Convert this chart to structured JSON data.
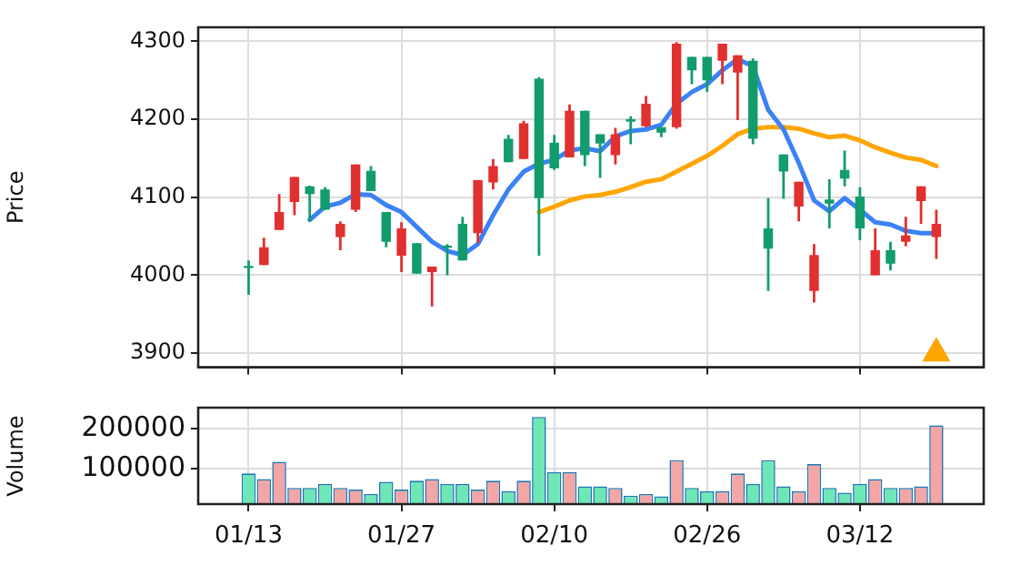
{
  "chart_data": [
    {
      "type": "candlestick",
      "ylabel": "Price",
      "categories": [
        null,
        null,
        null,
        null,
        null,
        null,
        null,
        null,
        null,
        null,
        null,
        null,
        null,
        null,
        null,
        null,
        null,
        null,
        null,
        null,
        null,
        null,
        null,
        null,
        null,
        null,
        null,
        null,
        null,
        null,
        null,
        null,
        null,
        null,
        null,
        null,
        null,
        null,
        null,
        null,
        null,
        null,
        null,
        null,
        null,
        null
      ],
      "ohlc": [
        [
          4010,
          4019,
          3975,
          4012
        ],
        [
          4036,
          4048,
          4013,
          4013
        ],
        [
          4081,
          4104,
          4058,
          4058
        ],
        [
          4126,
          4126,
          4077,
          4094
        ],
        [
          4104,
          4115,
          4069,
          4114
        ],
        [
          4084,
          4113,
          4084,
          4110
        ],
        [
          4066,
          4069,
          4032,
          4049
        ],
        [
          4142,
          4142,
          4081,
          4084
        ],
        [
          4108,
          4140,
          4108,
          4134
        ],
        [
          4043,
          4081,
          4036,
          4081
        ],
        [
          4060,
          4068,
          4004,
          4025
        ],
        [
          4002,
          4041,
          4002,
          4041
        ],
        [
          4011,
          4011,
          3960,
          4004
        ],
        [
          4036,
          4040,
          4000,
          4038
        ],
        [
          4019,
          4075,
          4019,
          4066
        ],
        [
          4122,
          4122,
          4041,
          4054
        ],
        [
          4140,
          4149,
          4110,
          4119
        ],
        [
          4145,
          4180,
          4145,
          4175
        ],
        [
          4195,
          4198,
          4149,
          4149
        ],
        [
          4099,
          4254,
          4025,
          4252
        ],
        [
          4137,
          4180,
          4135,
          4170
        ],
        [
          4211,
          4219,
          4151,
          4151
        ],
        [
          4154,
          4211,
          4140,
          4211
        ],
        [
          4169,
          4181,
          4125,
          4181
        ],
        [
          4181,
          4189,
          4142,
          4154
        ],
        [
          4197,
          4204,
          4168,
          4200
        ],
        [
          4220,
          4230,
          4190,
          4191
        ],
        [
          4183,
          4190,
          4177,
          4190
        ],
        [
          4297,
          4299,
          4188,
          4190
        ],
        [
          4263,
          4280,
          4245,
          4280
        ],
        [
          4250,
          4280,
          4235,
          4280
        ],
        [
          4297,
          4297,
          4245,
          4275
        ],
        [
          4282,
          4282,
          4199,
          4260
        ],
        [
          4175,
          4278,
          4168,
          4275
        ],
        [
          4034,
          4099,
          3980,
          4060
        ],
        [
          4133,
          4155,
          4098,
          4155
        ],
        [
          4120,
          4120,
          4069,
          4088
        ],
        [
          4026,
          4040,
          3965,
          3980
        ],
        [
          4092,
          4123,
          4060,
          4097
        ],
        [
          4124,
          4160,
          4114,
          4135
        ],
        [
          4060,
          4113,
          4045,
          4101
        ],
        [
          4032,
          4060,
          4000,
          4000
        ],
        [
          4015,
          4043,
          4006,
          4032
        ],
        [
          4051,
          4075,
          4037,
          4043
        ],
        [
          4114,
          4114,
          4066,
          4095
        ],
        [
          4066,
          4084,
          4021,
          4049
        ]
      ],
      "colors": [
        "#129c6c",
        "#e0302f",
        "#e0302f",
        "#e0302f",
        "#129c6c",
        "#129c6c",
        "#e0302f",
        "#e0302f",
        "#129c6c",
        "#129c6c",
        "#e0302f",
        "#129c6c",
        "#e0302f",
        "#129c6c",
        "#129c6c",
        "#e0302f",
        "#e0302f",
        "#129c6c",
        "#e0302f",
        "#129c6c",
        "#129c6c",
        "#e0302f",
        "#129c6c",
        "#129c6c",
        "#e0302f",
        "#129c6c",
        "#e0302f",
        "#129c6c",
        "#e0302f",
        "#129c6c",
        "#129c6c",
        "#e0302f",
        "#e0302f",
        "#129c6c",
        "#129c6c",
        "#129c6c",
        "#e0302f",
        "#e0302f",
        "#129c6c",
        "#129c6c",
        "#129c6c",
        "#e0302f",
        "#129c6c",
        "#e0302f",
        "#e0302f",
        "#e0302f"
      ],
      "series": [
        {
          "type": "line",
          "color": "#3b82f6",
          "values": [
            null,
            null,
            null,
            null,
            4071,
            4088,
            4093,
            4104,
            4103,
            4090,
            4081,
            4062,
            4043,
            4031,
            4026,
            4040,
            4077,
            4110,
            4133,
            4143,
            4148,
            4160,
            4163,
            4159,
            4178,
            4185,
            4187,
            4193,
            4220,
            4235,
            4245,
            4263,
            4277,
            4268,
            4212,
            4187,
            4144,
            4096,
            4082,
            4099,
            4084,
            4068,
            4065,
            4057,
            4054,
            4054
          ]
        },
        {
          "type": "line",
          "color": "#ffa500",
          "values": [
            null,
            null,
            null,
            null,
            null,
            null,
            null,
            null,
            null,
            null,
            null,
            null,
            null,
            null,
            null,
            null,
            null,
            null,
            null,
            4081,
            4088,
            4096,
            4101,
            4103,
            4107,
            4113,
            4120,
            4123,
            4133,
            4143,
            4153,
            4166,
            4181,
            4188,
            4190,
            4190,
            4188,
            4182,
            4177,
            4179,
            4173,
            4164,
            4157,
            4151,
            4148,
            4140
          ]
        },
        {
          "type": "scatter",
          "color": "#ffa500",
          "marker": "triangle",
          "values": [
            null,
            null,
            null,
            null,
            null,
            null,
            null,
            null,
            null,
            null,
            null,
            null,
            null,
            null,
            null,
            null,
            null,
            null,
            null,
            null,
            null,
            null,
            null,
            null,
            null,
            null,
            null,
            null,
            null,
            null,
            null,
            null,
            null,
            null,
            null,
            null,
            null,
            null,
            null,
            null,
            null,
            null,
            null,
            null,
            null,
            3900
          ]
        }
      ],
      "ylim": [
        3882,
        4318
      ],
      "yticks": [
        3900,
        4000,
        4100,
        4200,
        4300
      ],
      "grid": true,
      "tick_labels": "y"
    },
    {
      "type": "bar",
      "ylabel": "Volume",
      "categories": [
        "01/13",
        null,
        null,
        null,
        null,
        null,
        null,
        null,
        null,
        null,
        "01/27",
        null,
        null,
        null,
        null,
        null,
        null,
        null,
        null,
        null,
        "02/10",
        null,
        null,
        null,
        null,
        null,
        null,
        null,
        null,
        null,
        "02/26",
        null,
        null,
        null,
        null,
        null,
        null,
        null,
        null,
        null,
        "03/12",
        null,
        null,
        null,
        null,
        null
      ],
      "values": [
        89000,
        75000,
        118000,
        53000,
        53000,
        63000,
        53000,
        49000,
        38000,
        68000,
        49000,
        71000,
        75000,
        63000,
        63000,
        49000,
        71000,
        45000,
        71000,
        229000,
        92000,
        92000,
        57000,
        57000,
        53000,
        34000,
        38000,
        32000,
        122000,
        53000,
        45000,
        45000,
        89000,
        63000,
        122000,
        57000,
        45000,
        112000,
        53000,
        41000,
        63000,
        75000,
        53000,
        53000,
        57000,
        208000
      ],
      "colors": [
        "#6ee7b7",
        "#f4a6a6",
        "#f4a6a6",
        "#f4a6a6",
        "#6ee7b7",
        "#6ee7b7",
        "#f4a6a6",
        "#f4a6a6",
        "#6ee7b7",
        "#6ee7b7",
        "#f4a6a6",
        "#6ee7b7",
        "#f4a6a6",
        "#6ee7b7",
        "#6ee7b7",
        "#f4a6a6",
        "#f4a6a6",
        "#6ee7b7",
        "#f4a6a6",
        "#6ee7b7",
        "#6ee7b7",
        "#f4a6a6",
        "#6ee7b7",
        "#6ee7b7",
        "#f4a6a6",
        "#6ee7b7",
        "#f4a6a6",
        "#6ee7b7",
        "#f4a6a6",
        "#6ee7b7",
        "#6ee7b7",
        "#f4a6a6",
        "#f4a6a6",
        "#6ee7b7",
        "#6ee7b7",
        "#6ee7b7",
        "#f4a6a6",
        "#f4a6a6",
        "#6ee7b7",
        "#6ee7b7",
        "#6ee7b7",
        "#f4a6a6",
        "#6ee7b7",
        "#f4a6a6",
        "#f4a6a6",
        "#f4a6a6"
      ],
      "ylim": [
        13000,
        252000
      ],
      "yticks": [
        100000,
        200000
      ],
      "grid": true
    }
  ]
}
